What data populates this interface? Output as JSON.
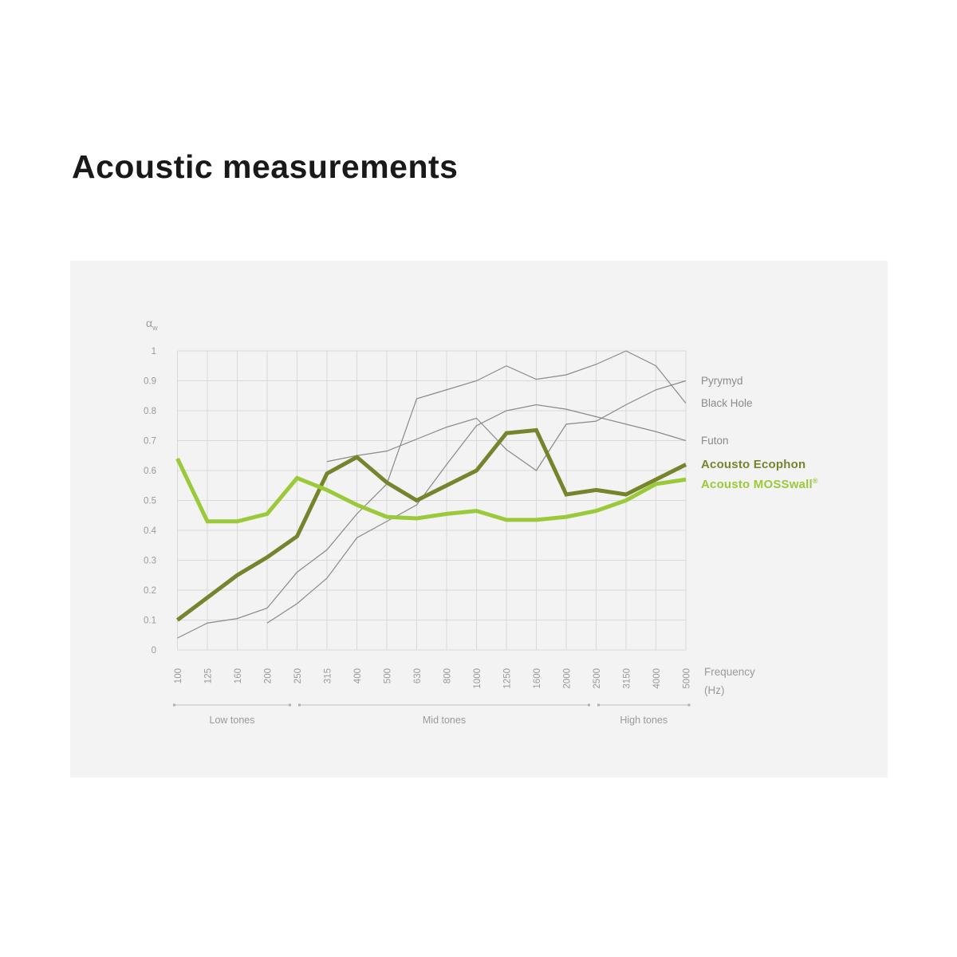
{
  "page": {
    "title": "Acoustic measurements"
  },
  "chart_data": {
    "type": "line",
    "title": "Acoustic measurements",
    "y_axis_label": "α",
    "y_axis_label_sub": "w",
    "x_axis_label_line1": "Frequency",
    "x_axis_label_line2": "(Hz)",
    "categories": [
      "100",
      "125",
      "160",
      "200",
      "250",
      "315",
      "400",
      "500",
      "630",
      "800",
      "1000",
      "1250",
      "1600",
      "2000",
      "2500",
      "3150",
      "4000",
      "5000"
    ],
    "y_ticks": [
      "0",
      "0.1",
      "0.2",
      "0.3",
      "0.4",
      "0.5",
      "0.6",
      "0.7",
      "0.8",
      "0.9",
      "1"
    ],
    "ylim": [
      0,
      1
    ],
    "grid": true,
    "legend_position": "right",
    "colors": {
      "panel_bg": "#f3f3f3",
      "grid": "#d9d9d9",
      "tick_text": "#9a9a9a",
      "bracket": "#c9c9c9",
      "bracket_dot": "#b0b0b0",
      "context_series": "#8a8a8a",
      "ecophon_green": "#76842e",
      "mosswall_green": "#9aca3a"
    },
    "series": [
      {
        "name": "Pyrymyd",
        "color": "#8a8a8a",
        "emphasis": false,
        "values": [
          null,
          null,
          null,
          null,
          null,
          0.63,
          0.65,
          0.665,
          0.705,
          0.745,
          0.775,
          0.67,
          0.6,
          0.755,
          0.765,
          0.82,
          0.87,
          0.9
        ]
      },
      {
        "name": "Black Hole",
        "color": "#8a8a8a",
        "emphasis": false,
        "values": [
          0.04,
          0.09,
          0.105,
          0.14,
          0.26,
          0.335,
          0.455,
          0.555,
          0.84,
          0.87,
          0.9,
          0.95,
          0.905,
          0.92,
          0.955,
          1.0,
          0.95,
          0.825
        ]
      },
      {
        "name": "Futon",
        "color": "#8a8a8a",
        "emphasis": false,
        "values": [
          null,
          null,
          null,
          0.09,
          0.155,
          0.24,
          0.375,
          0.43,
          0.485,
          0.62,
          0.75,
          0.8,
          0.82,
          0.805,
          0.78,
          0.755,
          0.73,
          0.7
        ]
      },
      {
        "name": "Acousto Ecophon",
        "color": "#76842e",
        "emphasis": true,
        "values": [
          0.1,
          0.175,
          0.25,
          0.31,
          0.38,
          0.59,
          0.645,
          0.56,
          0.5,
          0.55,
          0.6,
          0.725,
          0.735,
          0.52,
          0.535,
          0.52,
          0.57,
          0.62
        ]
      },
      {
        "name": "Acousto MOSSwall®",
        "color": "#9aca3a",
        "emphasis": true,
        "values": [
          0.64,
          0.43,
          0.43,
          0.455,
          0.575,
          0.535,
          0.485,
          0.445,
          0.44,
          0.455,
          0.465,
          0.435,
          0.435,
          0.445,
          0.465,
          0.5,
          0.555,
          0.57
        ]
      }
    ],
    "tone_ranges": [
      {
        "label": "Low tones",
        "from": "100",
        "to": "250"
      },
      {
        "label": "Mid tones",
        "from": "250",
        "to": "2500"
      },
      {
        "label": "High tones",
        "from": "2500",
        "to": "5000"
      }
    ]
  }
}
